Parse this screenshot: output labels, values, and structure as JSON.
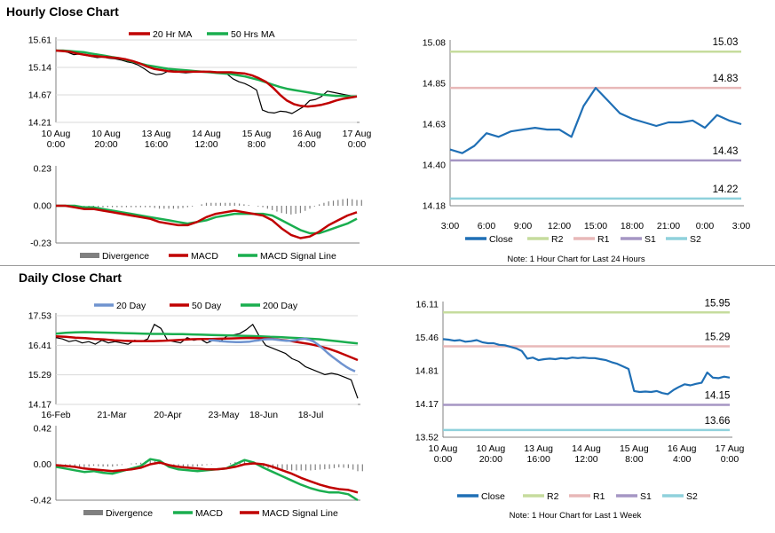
{
  "sections": {
    "hourly_title": "Hourly Close Chart",
    "daily_title": "Daily Close Chart"
  },
  "colors": {
    "ma20": "#c00000",
    "ma50": "#1aae4f",
    "close": "#1f6fb5",
    "r2": "#c6dc9d",
    "r1": "#e8b8b8",
    "s1": "#a596c4",
    "s2": "#8fd1dc",
    "divergence": "#808080",
    "price": "#000000",
    "d20": "#6f93cf",
    "d50": "#c00000",
    "d200": "#1aae4f"
  },
  "chart_data": [
    {
      "id": "hourly_price",
      "type": "line",
      "title": "Hourly Close Chart",
      "legend": [
        "20 Hr MA",
        "50 Hrs MA"
      ],
      "ylim": [
        14.21,
        15.61
      ],
      "yticks": [
        "15.61",
        "15.14",
        "14.67",
        "14.21"
      ],
      "xticks": [
        [
          "10 Aug",
          "0:00"
        ],
        [
          "10 Aug",
          "20:00"
        ],
        [
          "13 Aug",
          "16:00"
        ],
        [
          "14 Aug",
          "12:00"
        ],
        [
          "15 Aug",
          "8:00"
        ],
        [
          "16 Aug",
          "4:00"
        ],
        [
          "17 Aug",
          "0:00"
        ]
      ],
      "series": [
        {
          "name": "Price",
          "values": [
            15.43,
            15.42,
            15.4,
            15.36,
            15.37,
            15.35,
            15.33,
            15.31,
            15.32,
            15.3,
            15.29,
            15.27,
            15.24,
            15.22,
            15.18,
            15.12,
            15.05,
            15.02,
            15.03,
            15.08,
            15.1,
            15.06,
            15.05,
            15.06,
            15.07,
            15.08,
            15.06,
            15.05,
            15.05,
            15.03,
            14.95,
            14.9,
            14.87,
            14.82,
            14.76,
            14.42,
            14.38,
            14.37,
            14.4,
            14.39,
            14.36,
            14.42,
            14.48,
            14.58,
            14.6,
            14.65,
            14.74,
            14.72,
            14.7,
            14.68,
            14.66,
            14.64
          ]
        },
        {
          "name": "20 Hr MA",
          "values": [
            15.43,
            15.42,
            15.41,
            15.38,
            15.36,
            15.34,
            15.33,
            15.32,
            15.31,
            15.3,
            15.28,
            15.25,
            15.21,
            15.16,
            15.12,
            15.1,
            15.08,
            15.07,
            15.07,
            15.07,
            15.07,
            15.07,
            15.07,
            15.06,
            15.06,
            15.06,
            15.05,
            15.04,
            15.01,
            14.96,
            14.9,
            14.8,
            14.68,
            14.58,
            14.52,
            14.49,
            14.48,
            14.49,
            14.51,
            14.54,
            14.58,
            14.61,
            14.63,
            14.65
          ]
        },
        {
          "name": "50 Hrs MA",
          "values": [
            15.43,
            15.43,
            15.42,
            15.41,
            15.4,
            15.38,
            15.36,
            15.34,
            15.32,
            15.3,
            15.27,
            15.24,
            15.21,
            15.18,
            15.16,
            15.14,
            15.12,
            15.11,
            15.1,
            15.09,
            15.08,
            15.07,
            15.06,
            15.05,
            15.04,
            15.03,
            15.01,
            14.99,
            14.96,
            14.93,
            14.89,
            14.85,
            14.81,
            14.78,
            14.76,
            14.74,
            14.72,
            14.7,
            14.68,
            14.67,
            14.66,
            14.66,
            14.65,
            14.65
          ]
        }
      ]
    },
    {
      "id": "hourly_macd",
      "type": "line",
      "legend": [
        "Divergence",
        "MACD",
        "MACD Signal Line"
      ],
      "ylim": [
        -0.23,
        0.23
      ],
      "yticks": [
        "0.23",
        "0.00",
        "-0.23"
      ],
      "series": [
        {
          "name": "MACD",
          "values": [
            0.0,
            0.0,
            -0.01,
            -0.02,
            -0.02,
            -0.03,
            -0.04,
            -0.05,
            -0.06,
            -0.07,
            -0.08,
            -0.1,
            -0.11,
            -0.12,
            -0.12,
            -0.1,
            -0.07,
            -0.05,
            -0.04,
            -0.03,
            -0.04,
            -0.05,
            -0.06,
            -0.09,
            -0.14,
            -0.18,
            -0.2,
            -0.19,
            -0.16,
            -0.12,
            -0.09,
            -0.06,
            -0.04
          ]
        },
        {
          "name": "MACD Signal Line",
          "values": [
            0.0,
            0.0,
            0.0,
            -0.01,
            -0.01,
            -0.02,
            -0.03,
            -0.04,
            -0.05,
            -0.06,
            -0.07,
            -0.08,
            -0.09,
            -0.1,
            -0.11,
            -0.1,
            -0.09,
            -0.07,
            -0.06,
            -0.05,
            -0.05,
            -0.05,
            -0.05,
            -0.06,
            -0.09,
            -0.12,
            -0.15,
            -0.17,
            -0.17,
            -0.15,
            -0.13,
            -0.11,
            -0.08
          ]
        }
      ]
    },
    {
      "id": "hourly_levels",
      "type": "line",
      "title": "Note: 1 Hour Chart for Last 24 Hours",
      "legend": [
        "Close",
        "R2",
        "R1",
        "S1",
        "S2"
      ],
      "ylim": [
        14.18,
        15.08
      ],
      "yticks": [
        "15.08",
        "14.85",
        "14.63",
        "14.40",
        "14.18"
      ],
      "xticks": [
        "3:00",
        "6:00",
        "9:00",
        "12:00",
        "15:00",
        "18:00",
        "21:00",
        "0:00",
        "3:00"
      ],
      "levels": {
        "R2": 15.03,
        "R1": 14.83,
        "S1": 14.43,
        "S2": 14.22
      },
      "level_labels": {
        "R2": "15.03",
        "R1": "14.83",
        "S1": "14.43",
        "S2": "14.22"
      },
      "series": [
        {
          "name": "Close",
          "values": [
            14.49,
            14.47,
            14.51,
            14.58,
            14.56,
            14.59,
            14.6,
            14.61,
            14.6,
            14.6,
            14.56,
            14.73,
            14.83,
            14.76,
            14.69,
            14.66,
            14.64,
            14.62,
            14.64,
            14.64,
            14.65,
            14.61,
            14.68,
            14.65,
            14.63
          ]
        }
      ]
    },
    {
      "id": "daily_price",
      "type": "line",
      "title": "Daily Close Chart",
      "legend": [
        "20 Day",
        "50 Day",
        "200 Day"
      ],
      "ylim": [
        14.17,
        17.53
      ],
      "yticks": [
        "17.53",
        "16.41",
        "15.29",
        "14.17"
      ],
      "xticks": [
        "16-Feb",
        "21-Mar",
        "20-Apr",
        "23-May",
        "18-Jun",
        "18-Jul"
      ],
      "series": [
        {
          "name": "Price",
          "values": [
            16.7,
            16.65,
            16.55,
            16.6,
            16.5,
            16.55,
            16.45,
            16.6,
            16.5,
            16.55,
            16.5,
            16.45,
            16.6,
            16.55,
            16.65,
            17.2,
            17.05,
            16.6,
            16.55,
            16.5,
            16.7,
            16.6,
            16.65,
            16.5,
            16.6,
            16.55,
            16.75,
            16.8,
            16.85,
            17.0,
            17.2,
            16.75,
            16.4,
            16.3,
            16.2,
            16.1,
            15.9,
            15.8,
            15.6,
            15.5,
            15.4,
            15.3,
            15.35,
            15.3,
            15.2,
            15.1,
            14.4
          ]
        },
        {
          "name": "20 Day",
          "values": [
            16.6,
            16.6,
            16.58,
            16.56,
            16.55,
            16.54,
            16.53,
            16.53,
            16.54,
            16.55,
            16.58,
            16.6,
            16.63,
            16.64,
            16.64,
            16.62,
            16.6,
            16.58,
            16.58,
            16.6,
            16.64,
            16.66,
            16.62,
            16.55,
            16.42,
            16.28,
            16.12,
            15.98,
            15.85,
            15.72,
            15.6,
            15.5,
            15.42
          ]
        },
        {
          "name": "50 Day",
          "values": [
            16.75,
            16.73,
            16.7,
            16.68,
            16.65,
            16.63,
            16.6,
            16.58,
            16.57,
            16.57,
            16.57,
            16.58,
            16.6,
            16.62,
            16.64,
            16.65,
            16.65,
            16.66,
            16.67,
            16.68,
            16.69,
            16.68,
            16.66,
            16.62,
            16.58,
            16.52,
            16.46,
            16.38,
            16.28,
            16.15,
            16.0,
            15.85
          ]
        },
        {
          "name": "200 Day",
          "values": [
            16.85,
            16.88,
            16.9,
            16.91,
            16.9,
            16.89,
            16.88,
            16.87,
            16.86,
            16.85,
            16.84,
            16.84,
            16.83,
            16.83,
            16.82,
            16.81,
            16.8,
            16.79,
            16.78,
            16.77,
            16.76,
            16.75,
            16.73,
            16.72,
            16.7,
            16.68,
            16.66,
            16.64,
            16.6,
            16.56,
            16.52,
            16.48
          ]
        }
      ]
    },
    {
      "id": "daily_macd",
      "type": "line",
      "legend": [
        "Divergence",
        "MACD",
        "MACD Signal Line"
      ],
      "ylim": [
        -0.42,
        0.42
      ],
      "yticks": [
        "0.42",
        "0.00",
        "-0.42"
      ],
      "series": [
        {
          "name": "MACD",
          "values": [
            -0.03,
            -0.05,
            -0.07,
            -0.09,
            -0.08,
            -0.1,
            -0.11,
            -0.08,
            -0.05,
            -0.02,
            0.06,
            0.04,
            -0.03,
            -0.06,
            -0.07,
            -0.08,
            -0.07,
            -0.06,
            -0.05,
            0.0,
            0.05,
            0.02,
            -0.04,
            -0.09,
            -0.14,
            -0.19,
            -0.24,
            -0.28,
            -0.31,
            -0.33,
            -0.33,
            -0.35,
            -0.42
          ]
        },
        {
          "name": "MACD Signal Line",
          "values": [
            -0.01,
            -0.02,
            -0.03,
            -0.05,
            -0.06,
            -0.07,
            -0.08,
            -0.07,
            -0.06,
            -0.04,
            0.0,
            0.02,
            -0.01,
            -0.03,
            -0.04,
            -0.05,
            -0.06,
            -0.06,
            -0.05,
            -0.03,
            0.0,
            0.01,
            0.0,
            -0.03,
            -0.07,
            -0.11,
            -0.16,
            -0.2,
            -0.24,
            -0.27,
            -0.29,
            -0.3,
            -0.33
          ]
        }
      ]
    },
    {
      "id": "daily_levels",
      "type": "line",
      "title": "Note: 1 Hour Chart for Last 1 Week",
      "legend": [
        "Close",
        "R2",
        "R1",
        "S1",
        "S2"
      ],
      "ylim": [
        13.52,
        16.11
      ],
      "yticks": [
        "16.11",
        "15.46",
        "14.81",
        "14.17",
        "13.52"
      ],
      "xticks": [
        [
          "10 Aug",
          "0:00"
        ],
        [
          "10 Aug",
          "20:00"
        ],
        [
          "13 Aug",
          "16:00"
        ],
        [
          "14 Aug",
          "12:00"
        ],
        [
          "15 Aug",
          "8:00"
        ],
        [
          "16 Aug",
          "4:00"
        ],
        [
          "17 Aug",
          "0:00"
        ]
      ],
      "levels": {
        "R2": 15.95,
        "R1": 15.29,
        "S1": 14.15,
        "S2": 13.66
      },
      "level_labels": {
        "R2": "15.95",
        "R1": "15.29",
        "S1": "14.15",
        "S2": "13.66"
      },
      "series": [
        {
          "name": "Close",
          "values": [
            15.43,
            15.42,
            15.4,
            15.41,
            15.38,
            15.39,
            15.41,
            15.37,
            15.35,
            15.35,
            15.32,
            15.31,
            15.28,
            15.25,
            15.2,
            15.05,
            15.07,
            15.02,
            15.04,
            15.05,
            15.04,
            15.06,
            15.05,
            15.07,
            15.06,
            15.07,
            15.06,
            15.06,
            15.04,
            15.02,
            14.98,
            14.95,
            14.9,
            14.85,
            14.42,
            14.4,
            14.41,
            14.4,
            14.42,
            14.38,
            14.36,
            14.44,
            14.5,
            14.55,
            14.53,
            14.56,
            14.58,
            14.78,
            14.68,
            14.67,
            14.7,
            14.68
          ]
        }
      ]
    }
  ]
}
